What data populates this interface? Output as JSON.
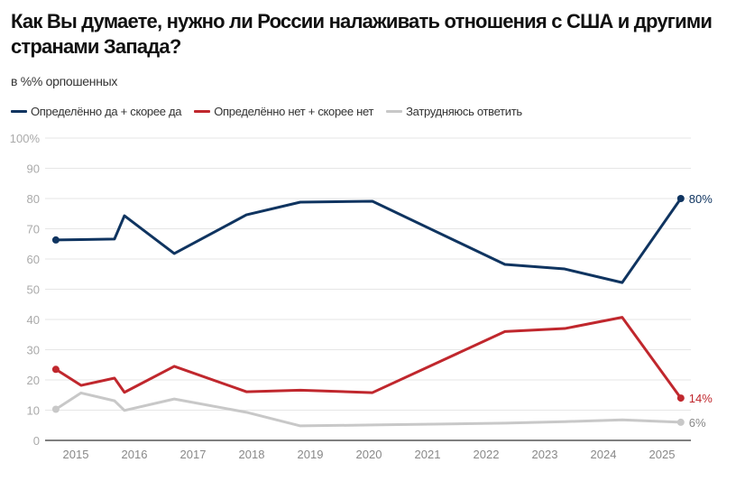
{
  "chart_data": {
    "type": "line",
    "title": "Как Вы думаете, нужно ли России налаживать отношения с США и другими странами Запада?",
    "subtitle": "в %% орпошенных",
    "legend_position": "top-left",
    "grid": true,
    "ylim": [
      0,
      100
    ],
    "xlim": [
      2014.5,
      2025.5
    ],
    "y_ticks": [
      "0",
      "10",
      "20",
      "30",
      "40",
      "50",
      "60",
      "70",
      "80",
      "90",
      "100%"
    ],
    "x_ticks": [
      "2015",
      "2016",
      "2017",
      "2018",
      "2019",
      "2020",
      "2021",
      "2022",
      "2023",
      "2024",
      "2025"
    ],
    "x": [
      2014.66,
      2015.09,
      2015.66,
      2015.83,
      2016.68,
      2017.91,
      2018.83,
      2020.06,
      2022.32,
      2023.34,
      2024.32,
      2025.32
    ],
    "series": [
      {
        "name": "Определённо да + скорее да",
        "color": "#0f3460",
        "values": [
          66.3,
          66.4,
          66.6,
          74.3,
          61.8,
          74.6,
          78.8,
          79.1,
          58.2,
          56.7,
          52.2,
          80
        ],
        "end_label": "80%"
      },
      {
        "name": "Определённо нет + скорее нет",
        "color": "#c0272d",
        "values": [
          23.5,
          18.2,
          20.6,
          15.9,
          24.5,
          16.1,
          16.6,
          15.8,
          36,
          37,
          40.7,
          14
        ],
        "end_label": "14%"
      },
      {
        "name": "Затрудняюсь ответить",
        "color": "#c8c8c8",
        "values": [
          10.3,
          15.7,
          13.1,
          9.9,
          13.7,
          9.3,
          4.8,
          5.1,
          5.7,
          6.2,
          6.8,
          6
        ],
        "end_label": "6%"
      }
    ]
  }
}
